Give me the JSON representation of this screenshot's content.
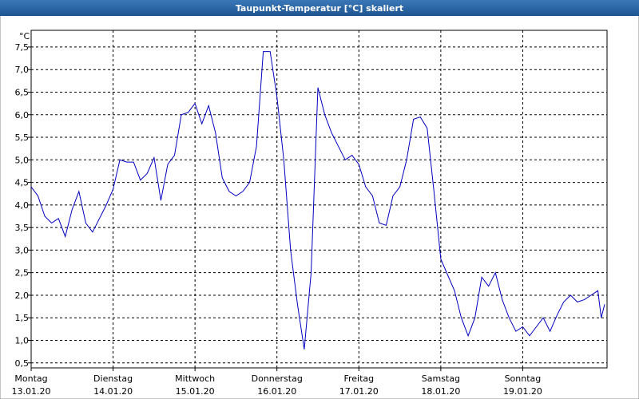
{
  "chart_data": {
    "type": "line",
    "title": "Taupunkt-Temperatur [°C] skaliert",
    "y_unit": "°C",
    "x": [
      0,
      2,
      4,
      6,
      8,
      10,
      12,
      14,
      16,
      18,
      20,
      22,
      24,
      26,
      28,
      30,
      32,
      34,
      36,
      38,
      40,
      42,
      44,
      46,
      48,
      50,
      52,
      54,
      56,
      58,
      60,
      62,
      64,
      66,
      68,
      70,
      72,
      74,
      76,
      78,
      80,
      82,
      84,
      86,
      88,
      90,
      92,
      94,
      96,
      98,
      100,
      102,
      104,
      106,
      108,
      110,
      112,
      114,
      116,
      118,
      120,
      122,
      124,
      126,
      128,
      130,
      132,
      134,
      136,
      138,
      140,
      142,
      144,
      146,
      148,
      150,
      152,
      154,
      156,
      158,
      160,
      162,
      164,
      166,
      167,
      168
    ],
    "series": [
      {
        "name": "Taupunkt",
        "color": "#0000c0",
        "values": [
          4.4,
          4.2,
          3.75,
          3.6,
          3.7,
          3.3,
          3.9,
          4.3,
          3.6,
          3.4,
          3.7,
          4.0,
          4.35,
          5.0,
          4.95,
          4.95,
          4.55,
          4.7,
          5.05,
          4.1,
          4.9,
          5.1,
          6.0,
          6.05,
          6.25,
          5.8,
          6.2,
          5.6,
          4.6,
          4.3,
          4.2,
          4.3,
          4.5,
          5.3,
          7.4,
          7.4,
          6.4,
          5.0,
          3.0,
          1.8,
          0.8,
          2.5,
          6.6,
          6.0,
          5.6,
          5.3,
          5.0,
          5.1,
          4.9,
          4.4,
          4.2,
          3.6,
          3.55,
          4.2,
          4.4,
          5.0,
          5.9,
          5.95,
          5.7,
          4.3,
          2.8,
          2.45,
          2.1,
          1.5,
          1.1,
          1.5,
          2.4,
          2.2,
          2.5,
          1.9,
          1.5,
          1.2,
          1.3,
          1.1,
          1.3,
          1.5,
          1.2,
          1.55,
          1.85,
          2.0,
          1.85,
          1.9,
          2.0,
          2.1,
          1.5,
          1.8
        ]
      }
    ],
    "xlim": [
      0,
      168.7
    ],
    "xticks": [
      {
        "value": 0,
        "label": "Montag",
        "sublabel": "13.01.20"
      },
      {
        "value": 24,
        "label": "Dienstag",
        "sublabel": "14.01.20"
      },
      {
        "value": 48,
        "label": "Mittwoch",
        "sublabel": "15.01.20"
      },
      {
        "value": 72,
        "label": "Donnerstag",
        "sublabel": "16.01.20"
      },
      {
        "value": 96,
        "label": "Freitag",
        "sublabel": "17.01.20"
      },
      {
        "value": 120,
        "label": "Samstag",
        "sublabel": "18.01.20"
      },
      {
        "value": 144,
        "label": "Sonntag",
        "sublabel": "19.01.20"
      }
    ],
    "ylim": [
      0.39,
      7.87
    ],
    "yticks": [
      {
        "value": 0.5,
        "label": "0,5"
      },
      {
        "value": 1,
        "label": "1,0"
      },
      {
        "value": 1.5,
        "label": "1,5"
      },
      {
        "value": 2,
        "label": "2,0"
      },
      {
        "value": 2.5,
        "label": "2,5"
      },
      {
        "value": 3,
        "label": "3,0"
      },
      {
        "value": 3.5,
        "label": "3,5"
      },
      {
        "value": 4,
        "label": "4,0"
      },
      {
        "value": 4.5,
        "label": "4,5"
      },
      {
        "value": 5,
        "label": "5,0"
      },
      {
        "value": 5.5,
        "label": "5,5"
      },
      {
        "value": 6,
        "label": "6,0"
      },
      {
        "value": 6.5,
        "label": "6,5"
      },
      {
        "value": 7,
        "label": "7,0"
      },
      {
        "value": 7.5,
        "label": "7,5"
      }
    ],
    "grid": true
  }
}
